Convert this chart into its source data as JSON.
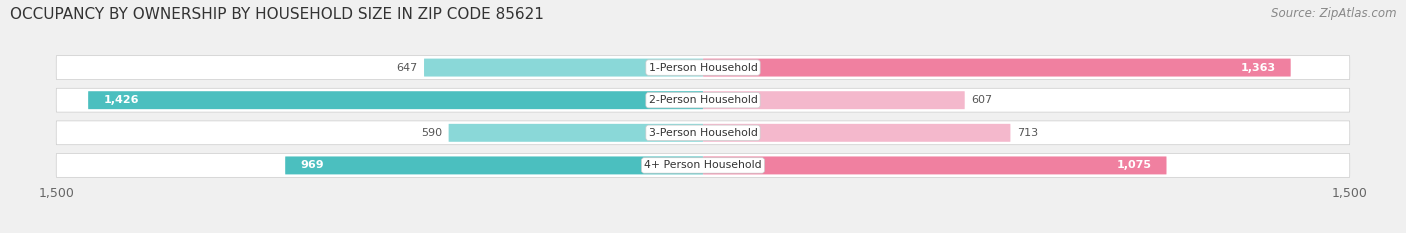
{
  "title": "OCCUPANCY BY OWNERSHIP BY HOUSEHOLD SIZE IN ZIP CODE 85621",
  "source": "Source: ZipAtlas.com",
  "categories": [
    "1-Person Household",
    "2-Person Household",
    "3-Person Household",
    "4+ Person Household"
  ],
  "owner_values": [
    647,
    1426,
    590,
    969
  ],
  "renter_values": [
    1363,
    607,
    713,
    1075
  ],
  "owner_color": "#4BBFBF",
  "renter_color": "#F080A0",
  "owner_color_light": "#8AD8D8",
  "renter_color_light": "#F4B8CC",
  "axis_max": 1500,
  "bar_height": 0.55,
  "background_color": "#f0f0f0",
  "bar_background_color": "#e8e8e8",
  "title_fontsize": 11,
  "tick_fontsize": 9,
  "legend_fontsize": 9,
  "source_fontsize": 8.5,
  "white_label_threshold": 900
}
